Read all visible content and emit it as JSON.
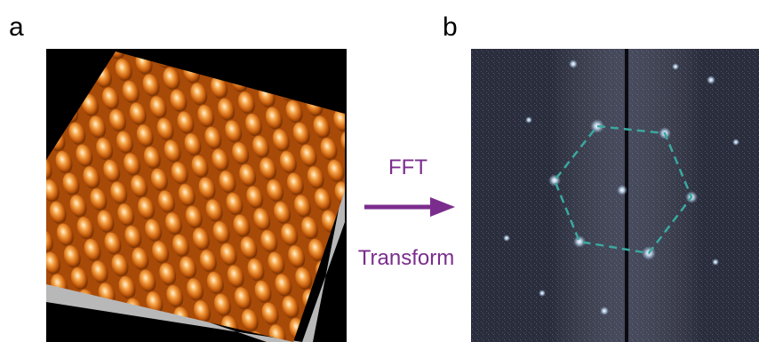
{
  "panel_a": {
    "label": "a"
  },
  "panel_b": {
    "label": "b"
  },
  "arrow": {
    "top_label": "FFT",
    "bottom_label": "Transform"
  }
}
